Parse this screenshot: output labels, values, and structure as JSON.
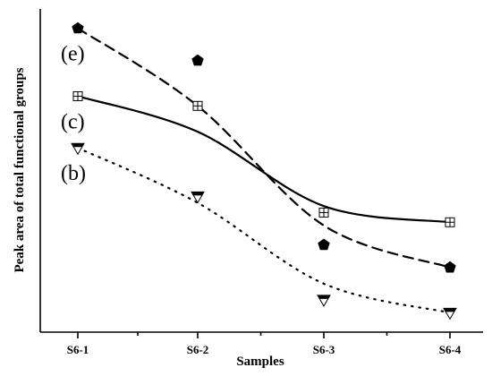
{
  "chart_data": {
    "type": "scatter",
    "title": "",
    "xlabel": "Samples",
    "ylabel": "Peak area of total functional groups",
    "categories": [
      "S6-1",
      "S6-2",
      "S6-3",
      "S6-4"
    ],
    "ylim": [
      0,
      1
    ],
    "grid": false,
    "legend": "none",
    "series": [
      {
        "name": "(e)",
        "marker": "filled-pentagon",
        "line_style": "dashed",
        "color": "#000000",
        "values": [
          0.94,
          0.84,
          0.27,
          0.2
        ],
        "fit": [
          0.94,
          0.7,
          0.33,
          0.2
        ]
      },
      {
        "name": "(c)",
        "marker": "boxed-plus-square",
        "line_style": "solid",
        "color": "#000000",
        "values": [
          0.73,
          0.7,
          0.37,
          0.34
        ],
        "fit": [
          0.73,
          0.62,
          0.39,
          0.34
        ]
      },
      {
        "name": "(b)",
        "marker": "half-filled-down-triangle",
        "line_style": "dotted",
        "color": "#000000",
        "values": [
          0.57,
          0.42,
          0.1,
          0.06
        ],
        "fit": [
          0.57,
          0.4,
          0.15,
          0.06
        ]
      }
    ]
  }
}
